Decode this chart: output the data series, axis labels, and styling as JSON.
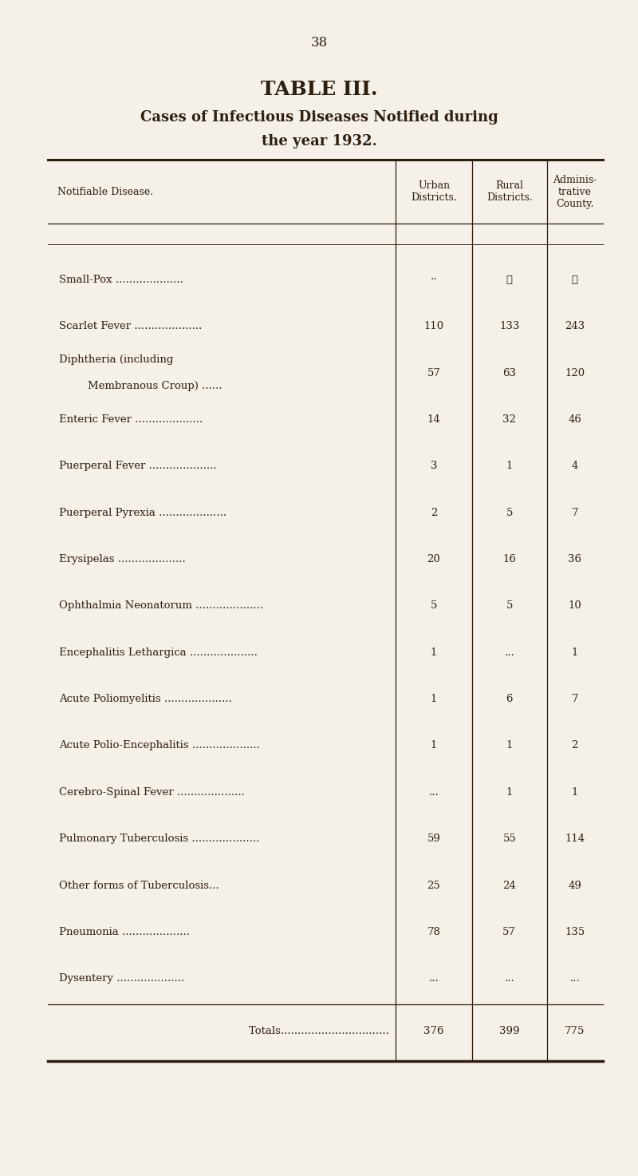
{
  "page_number": "38",
  "title_line1": "TABLE III.",
  "title_line2": "Cases of Infectious Diseases Notified during",
  "title_line3": "the year 1932.",
  "col_headers": [
    "Notifiable Disease.",
    "Urban\nDistricts.",
    "Rural\nDistricts.",
    "Adminis-\ntrative\nCounty."
  ],
  "rows": [
    {
      "disease_line1": "Small-Pox",
      "disease_line2": "",
      "indent_line2": false,
      "dot_style": "dotted",
      "urban": "··",
      "rural": "⋯",
      "county": "⋯"
    },
    {
      "disease_line1": "Scarlet Fever",
      "disease_line2": "",
      "indent_line2": false,
      "dot_style": "dotted",
      "urban": "110",
      "rural": "133",
      "county": "243"
    },
    {
      "disease_line1": "Diphtheria (including",
      "disease_line2": "Membranous Croup)",
      "indent_line2": true,
      "dot_style": "dotted",
      "urban": "57",
      "rural": "63",
      "county": "120"
    },
    {
      "disease_line1": "Enteric Fever",
      "disease_line2": "",
      "indent_line2": false,
      "dot_style": "dotted",
      "urban": "14",
      "rural": "32",
      "county": "46"
    },
    {
      "disease_line1": "Puerperal Fever",
      "disease_line2": "",
      "indent_line2": false,
      "dot_style": "dotted",
      "urban": "3",
      "rural": "1",
      "county": "4"
    },
    {
      "disease_line1": "Puerperal Pyrexia",
      "disease_line2": "",
      "indent_line2": false,
      "dot_style": "dotted",
      "urban": "2",
      "rural": "5",
      "county": "7"
    },
    {
      "disease_line1": "Erysipelas",
      "disease_line2": "",
      "indent_line2": false,
      "dot_style": "dotted",
      "urban": "20",
      "rural": "16",
      "county": "36"
    },
    {
      "disease_line1": "Ophthalmia Neonatorum",
      "disease_line2": "",
      "indent_line2": false,
      "dot_style": "dotted",
      "urban": "5",
      "rural": "5",
      "county": "10"
    },
    {
      "disease_line1": "Encephalitis Lethargica",
      "disease_line2": "",
      "indent_line2": false,
      "dot_style": "dotted",
      "urban": "1",
      "rural": "...",
      "county": "1"
    },
    {
      "disease_line1": "Acute Poliomyelitis",
      "disease_line2": "",
      "indent_line2": false,
      "dot_style": "dotted",
      "urban": "1",
      "rural": "6",
      "county": "7"
    },
    {
      "disease_line1": "Acute Polio-Encephalitis",
      "disease_line2": "",
      "indent_line2": false,
      "dot_style": "dotted",
      "urban": "1",
      "rural": "1",
      "county": "2"
    },
    {
      "disease_line1": "Cerebro-Spinal Fever",
      "disease_line2": "",
      "indent_line2": false,
      "dot_style": "dotted",
      "urban": "...",
      "rural": "1",
      "county": "1"
    },
    {
      "disease_line1": "Pulmonary Tuberculosis",
      "disease_line2": "",
      "indent_line2": false,
      "dot_style": "dotted",
      "urban": "59",
      "rural": "55",
      "county": "114"
    },
    {
      "disease_line1": "Other forms of Tuberculosis...",
      "disease_line2": "",
      "indent_line2": false,
      "dot_style": "none",
      "urban": "25",
      "rural": "24",
      "county": "49"
    },
    {
      "disease_line1": "Pneumonia",
      "disease_line2": "",
      "indent_line2": false,
      "dot_style": "dotted",
      "urban": "78",
      "rural": "57",
      "county": "135"
    },
    {
      "disease_line1": "Dysentery",
      "disease_line2": "",
      "indent_line2": false,
      "dot_style": "dotted",
      "urban": "...",
      "rural": "...",
      "county": "..."
    }
  ],
  "totals_label": "Totals",
  "totals_dots": "................................",
  "totals": {
    "urban": "376",
    "rural": "399",
    "county": "775"
  },
  "bg_color": "#f5f0e8",
  "text_color": "#2d1e10",
  "line_color": "#2d1e10",
  "font_size_title1": 18,
  "font_size_title2": 13,
  "font_size_header": 9,
  "font_size_body": 9.5,
  "font_size_page": 12
}
